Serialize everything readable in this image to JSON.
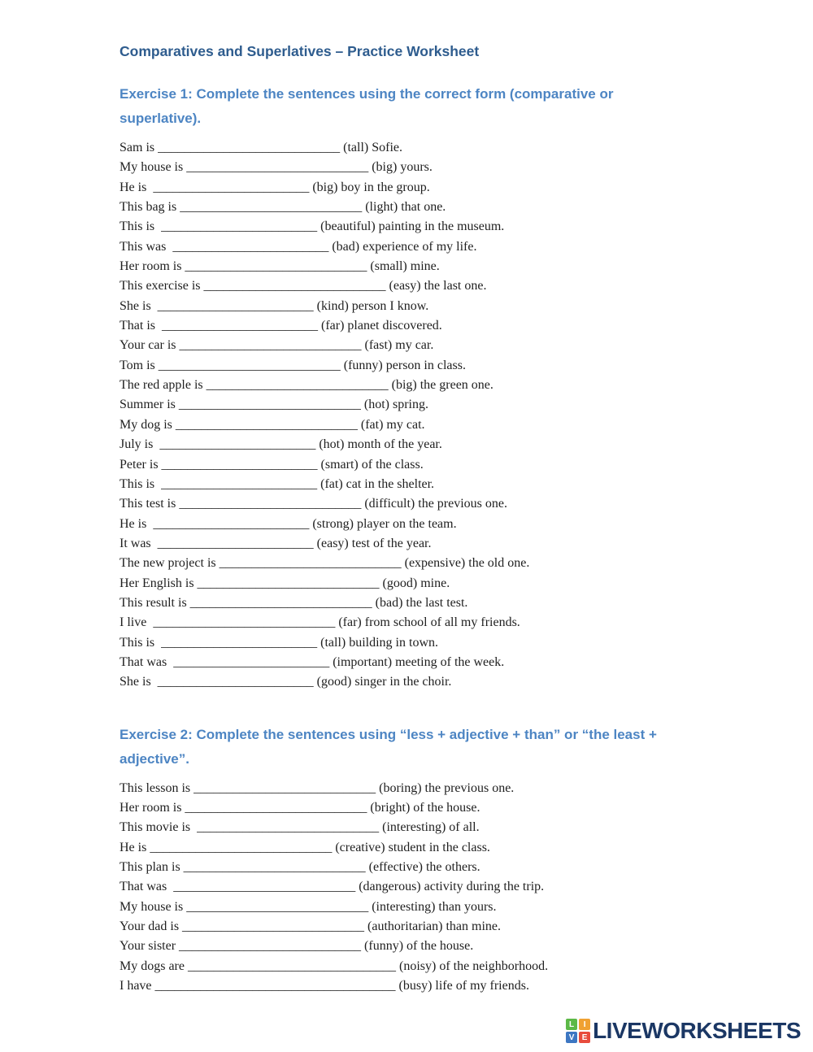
{
  "title": "Comparatives and Superlatives – Practice Worksheet",
  "exercise1": {
    "heading": "Exercise 1: Complete the sentences using the correct form (comparative or superlative).",
    "sentences": [
      "Sam is ____________________________ (tall) Sofie.",
      "My house is ____________________________ (big) yours.",
      "He is  ________________________ (big) boy in the group.",
      "This bag is ____________________________ (light) that one.",
      "This is  ________________________ (beautiful) painting in the museum.",
      "This was  ________________________ (bad) experience of my life.",
      "Her room is ____________________________ (small) mine.",
      "This exercise is ____________________________ (easy) the last one.",
      "She is  ________________________ (kind) person I know.",
      "That is  ________________________ (far) planet discovered.",
      "Your car is ____________________________ (fast) my car.",
      "Tom is ____________________________ (funny) person in class.",
      "The red apple is ____________________________ (big) the green one.",
      "Summer is ____________________________ (hot) spring.",
      "My dog is ____________________________ (fat) my cat.",
      "July is  ________________________ (hot) month of the year.",
      "Peter is ________________________ (smart) of the class.",
      "This is  ________________________ (fat) cat in the shelter.",
      "This test is ____________________________ (difficult) the previous one.",
      "He is  ________________________ (strong) player on the team.",
      "It was  ________________________ (easy) test of the year.",
      "The new project is ____________________________ (expensive) the old one.",
      "Her English is ____________________________ (good) mine.",
      "This result is ____________________________ (bad) the last test.",
      "I live  ____________________________ (far) from school of all my friends.",
      "This is  ________________________ (tall) building in town.",
      "That was  ________________________ (important) meeting of the week.",
      "She is  ________________________ (good) singer in the choir."
    ]
  },
  "exercise2": {
    "heading": "Exercise 2: Complete the sentences using “less + adjective + than” or “the least + adjective”.",
    "sentences": [
      "This lesson is ____________________________ (boring) the previous one.",
      "Her room is ____________________________ (bright) of the house.",
      "This movie is  ____________________________ (interesting) of all.",
      "He is ____________________________ (creative) student in the class.",
      "This plan is ____________________________ (effective) the others.",
      "That was  ____________________________ (dangerous) activity during the trip.",
      "My house is ____________________________ (interesting) than yours.",
      "Your dad is ____________________________ (authoritarian) than mine.",
      "Your sister ____________________________ (funny) of the house.",
      "My dogs are ________________________________ (noisy) of the neighborhood.",
      "I have _____________________________________ (busy) life of my friends."
    ]
  },
  "footer": {
    "logo_text": "LIVEWORKSHEETS",
    "logo_tiles": [
      {
        "letter": "L",
        "color": "#5cb947"
      },
      {
        "letter": "I",
        "color": "#f0a132"
      },
      {
        "letter": "V",
        "color": "#3d77c2"
      },
      {
        "letter": "E",
        "color": "#e84c3d"
      }
    ]
  },
  "colors": {
    "title": "#2e5c8e",
    "heading": "#4d85c3",
    "body": "#1f1f1f",
    "logo_text": "#1b3764"
  }
}
